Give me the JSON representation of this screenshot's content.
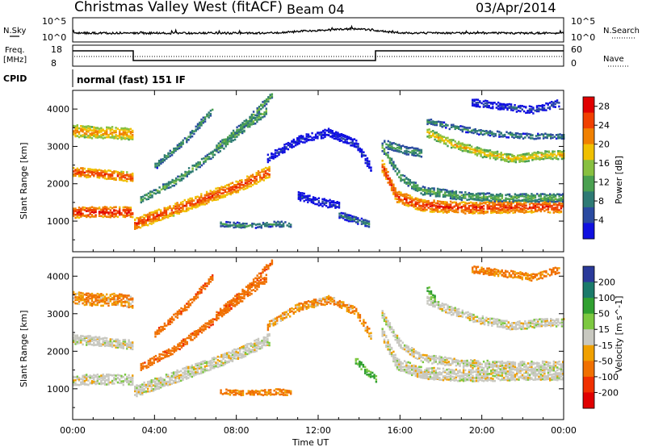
{
  "header": {
    "site": "Christmas Valley West (fitACF)",
    "beam": "Beam 04",
    "date": "03/Apr/2014"
  },
  "strip": {
    "nsky_label": "N.Sky",
    "nsky_ticks": [
      "10^5",
      "10^0"
    ],
    "nsearch_label": "N.Search",
    "nsearch_ticks": [
      "10^5",
      "10^0"
    ],
    "freq_label_1": "Freq.",
    "freq_label_2": "[MHz]",
    "freq_ticks": [
      "18",
      "8"
    ],
    "nave_label": "Nave",
    "nave_ticks": [
      "60",
      "0"
    ],
    "cpid_label": "CPID",
    "cpid_value": "normal (fast) 151 IF"
  },
  "colors": {
    "power_scale": [
      "#1010e0",
      "#2a4aa0",
      "#2e7a74",
      "#4aa050",
      "#88c040",
      "#f0c000",
      "#f08000",
      "#f04000",
      "#e00000"
    ],
    "velocity_scale": [
      "#2a3a9a",
      "#1a7a6a",
      "#30a030",
      "#7cc840",
      "#c8c8c0",
      "#f0a000",
      "#f07000",
      "#f03000",
      "#e00000"
    ]
  },
  "chart_data": [
    {
      "type": "heatmap",
      "title": "",
      "xlabel": "Time UT",
      "ylabel": "Slant Range [km]",
      "x_ticks": [
        "00:00",
        "04:00",
        "08:00",
        "12:00",
        "16:00",
        "20:00",
        "00:00"
      ],
      "x_range_hours": [
        0,
        24
      ],
      "ylim": [
        180,
        4500
      ],
      "y_ticks": [
        1000,
        2000,
        3000,
        4000
      ],
      "colorbar": {
        "label": "Power [dB]",
        "range": [
          0,
          30
        ],
        "ticks": [
          4,
          8,
          12,
          16,
          20,
          24,
          28
        ]
      },
      "bands": [
        {
          "t": [
            0,
            1,
            2,
            2.9
          ],
          "range_km": [
            1250,
            1280,
            1270,
            1270
          ],
          "width_km": 280,
          "power_db": 28
        },
        {
          "t": [
            0,
            1,
            2,
            2.9
          ],
          "range_km": [
            2350,
            2300,
            2250,
            2200
          ],
          "width_km": 250,
          "power_db": 26
        },
        {
          "t": [
            0,
            1,
            2,
            2.9
          ],
          "range_km": [
            3450,
            3400,
            3400,
            3350
          ],
          "width_km": 330,
          "power_db": 22
        },
        {
          "t": [
            3,
            4.5,
            6,
            8,
            9.6
          ],
          "range_km": [
            950,
            1250,
            1550,
            1950,
            2350
          ],
          "width_km": 320,
          "power_db": 26
        },
        {
          "t": [
            3.3,
            5,
            6.5,
            8,
            9.5
          ],
          "range_km": [
            1600,
            2100,
            2700,
            3350,
            4000
          ],
          "width_km": 200,
          "power_db": 14
        },
        {
          "t": [
            4,
            5.5,
            6.8
          ],
          "range_km": [
            2500,
            3200,
            4000
          ],
          "width_km": 180,
          "power_db": 12
        },
        {
          "t": [
            7,
            8.5,
            9.7
          ],
          "range_km": [
            3000,
            3700,
            4400
          ],
          "width_km": 170,
          "power_db": 14
        },
        {
          "t": [
            7.2,
            8.5,
            10,
            10.7
          ],
          "range_km": [
            950,
            900,
            950,
            920
          ],
          "width_km": 150,
          "power_db": 11
        },
        {
          "t": [
            9.5,
            11,
            12.5,
            13.8,
            14.6
          ],
          "range_km": [
            2700,
            3200,
            3400,
            3100,
            2400
          ],
          "width_km": 220,
          "power_db": 4
        },
        {
          "t": [
            11,
            12,
            13
          ],
          "range_km": [
            1700,
            1550,
            1450
          ],
          "width_km": 220,
          "power_db": 5
        },
        {
          "t": [
            13,
            13.8,
            14.5
          ],
          "range_km": [
            1200,
            1050,
            950
          ],
          "width_km": 180,
          "power_db": 10
        },
        {
          "t": [
            15.1,
            15.8,
            17,
            19,
            21,
            23,
            24
          ],
          "range_km": [
            2500,
            1700,
            1450,
            1380,
            1400,
            1420,
            1400
          ],
          "width_km": 320,
          "power_db": 27
        },
        {
          "t": [
            15.1,
            16,
            17,
            19,
            21,
            23,
            24
          ],
          "range_km": [
            3000,
            2200,
            1850,
            1700,
            1650,
            1650,
            1650
          ],
          "width_km": 220,
          "power_db": 14
        },
        {
          "t": [
            15.2,
            16,
            17
          ],
          "range_km": [
            3100,
            2950,
            2850
          ],
          "width_km": 220,
          "power_db": 12
        },
        {
          "t": [
            17.3,
            18.5,
            20,
            21.5,
            23,
            24
          ],
          "range_km": [
            3400,
            3100,
            2850,
            2700,
            2800,
            2800
          ],
          "width_km": 230,
          "power_db": 20
        },
        {
          "t": [
            17.3,
            18.5,
            20,
            22,
            24
          ],
          "range_km": [
            3700,
            3550,
            3400,
            3300,
            3300
          ],
          "width_km": 150,
          "power_db": 11
        },
        {
          "t": [
            19.5,
            21,
            22.5,
            23.8
          ],
          "range_km": [
            4200,
            4100,
            4000,
            4200
          ],
          "width_km": 200,
          "power_db": 6
        }
      ]
    },
    {
      "type": "heatmap",
      "title": "",
      "xlabel": "Time UT",
      "ylabel": "Slant Range [km]",
      "x_ticks": [
        "00:00",
        "04:00",
        "08:00",
        "12:00",
        "16:00",
        "20:00",
        "00:00"
      ],
      "x_range_hours": [
        0,
        24
      ],
      "ylim": [
        180,
        4500
      ],
      "y_ticks": [
        1000,
        2000,
        3000,
        4000
      ],
      "colorbar": {
        "label": "Velocity [m s^-1]",
        "range": [
          -250,
          250
        ],
        "ticks": [
          200,
          100,
          50,
          15,
          -15,
          -50,
          -100,
          -200
        ]
      },
      "bands": [
        {
          "t": [
            0,
            1,
            2,
            2.9
          ],
          "range_km": [
            1250,
            1280,
            1270,
            1270
          ],
          "width_km": 280,
          "velocity": 0
        },
        {
          "t": [
            0,
            1,
            2,
            2.9
          ],
          "range_km": [
            2350,
            2300,
            2250,
            2200
          ],
          "width_km": 250,
          "velocity": 0
        },
        {
          "t": [
            0,
            1,
            2,
            2.9
          ],
          "range_km": [
            3450,
            3400,
            3400,
            3350
          ],
          "width_km": 330,
          "velocity": -30
        },
        {
          "t": [
            3,
            4.5,
            6,
            8,
            9.6
          ],
          "range_km": [
            950,
            1250,
            1550,
            1950,
            2350
          ],
          "width_km": 320,
          "velocity": 0
        },
        {
          "t": [
            3.3,
            5,
            6.5,
            8,
            9.5
          ],
          "range_km": [
            1600,
            2100,
            2700,
            3350,
            4000
          ],
          "width_km": 200,
          "velocity": -60
        },
        {
          "t": [
            4,
            5.5,
            6.8
          ],
          "range_km": [
            2500,
            3200,
            4000
          ],
          "width_km": 180,
          "velocity": -60
        },
        {
          "t": [
            7,
            8.5,
            9.7
          ],
          "range_km": [
            3000,
            3700,
            4400
          ],
          "width_km": 170,
          "velocity": -60
        },
        {
          "t": [
            7.2,
            8.5,
            10,
            10.7
          ],
          "range_km": [
            950,
            900,
            950,
            920
          ],
          "width_km": 150,
          "velocity": -40
        },
        {
          "t": [
            9.5,
            11,
            12.5,
            13.8,
            14.6
          ],
          "range_km": [
            2700,
            3200,
            3400,
            3100,
            2400
          ],
          "width_km": 220,
          "velocity": -30
        },
        {
          "t": [
            13.8,
            14.3,
            14.8
          ],
          "range_km": [
            1800,
            1500,
            1300
          ],
          "width_km": 200,
          "velocity": 40
        },
        {
          "t": [
            15.1,
            15.8,
            17,
            19,
            21,
            23,
            24
          ],
          "range_km": [
            2500,
            1700,
            1450,
            1380,
            1400,
            1420,
            1400
          ],
          "width_km": 320,
          "velocity": 0
        },
        {
          "t": [
            15.1,
            16,
            17,
            19,
            21,
            23,
            24
          ],
          "range_km": [
            3000,
            2200,
            1850,
            1700,
            1650,
            1650,
            1650
          ],
          "width_km": 220,
          "velocity": 0
        },
        {
          "t": [
            17.3,
            18.5,
            20,
            21.5,
            23,
            24
          ],
          "range_km": [
            3400,
            3100,
            2850,
            2700,
            2800,
            2800
          ],
          "width_km": 230,
          "velocity": 0
        },
        {
          "t": [
            17.3,
            17.7
          ],
          "range_km": [
            3700,
            3400
          ],
          "width_km": 200,
          "velocity": 40
        },
        {
          "t": [
            19.5,
            21,
            22.5,
            23.8
          ],
          "range_km": [
            4200,
            4100,
            4000,
            4200
          ],
          "width_km": 200,
          "velocity": -40
        }
      ]
    }
  ]
}
